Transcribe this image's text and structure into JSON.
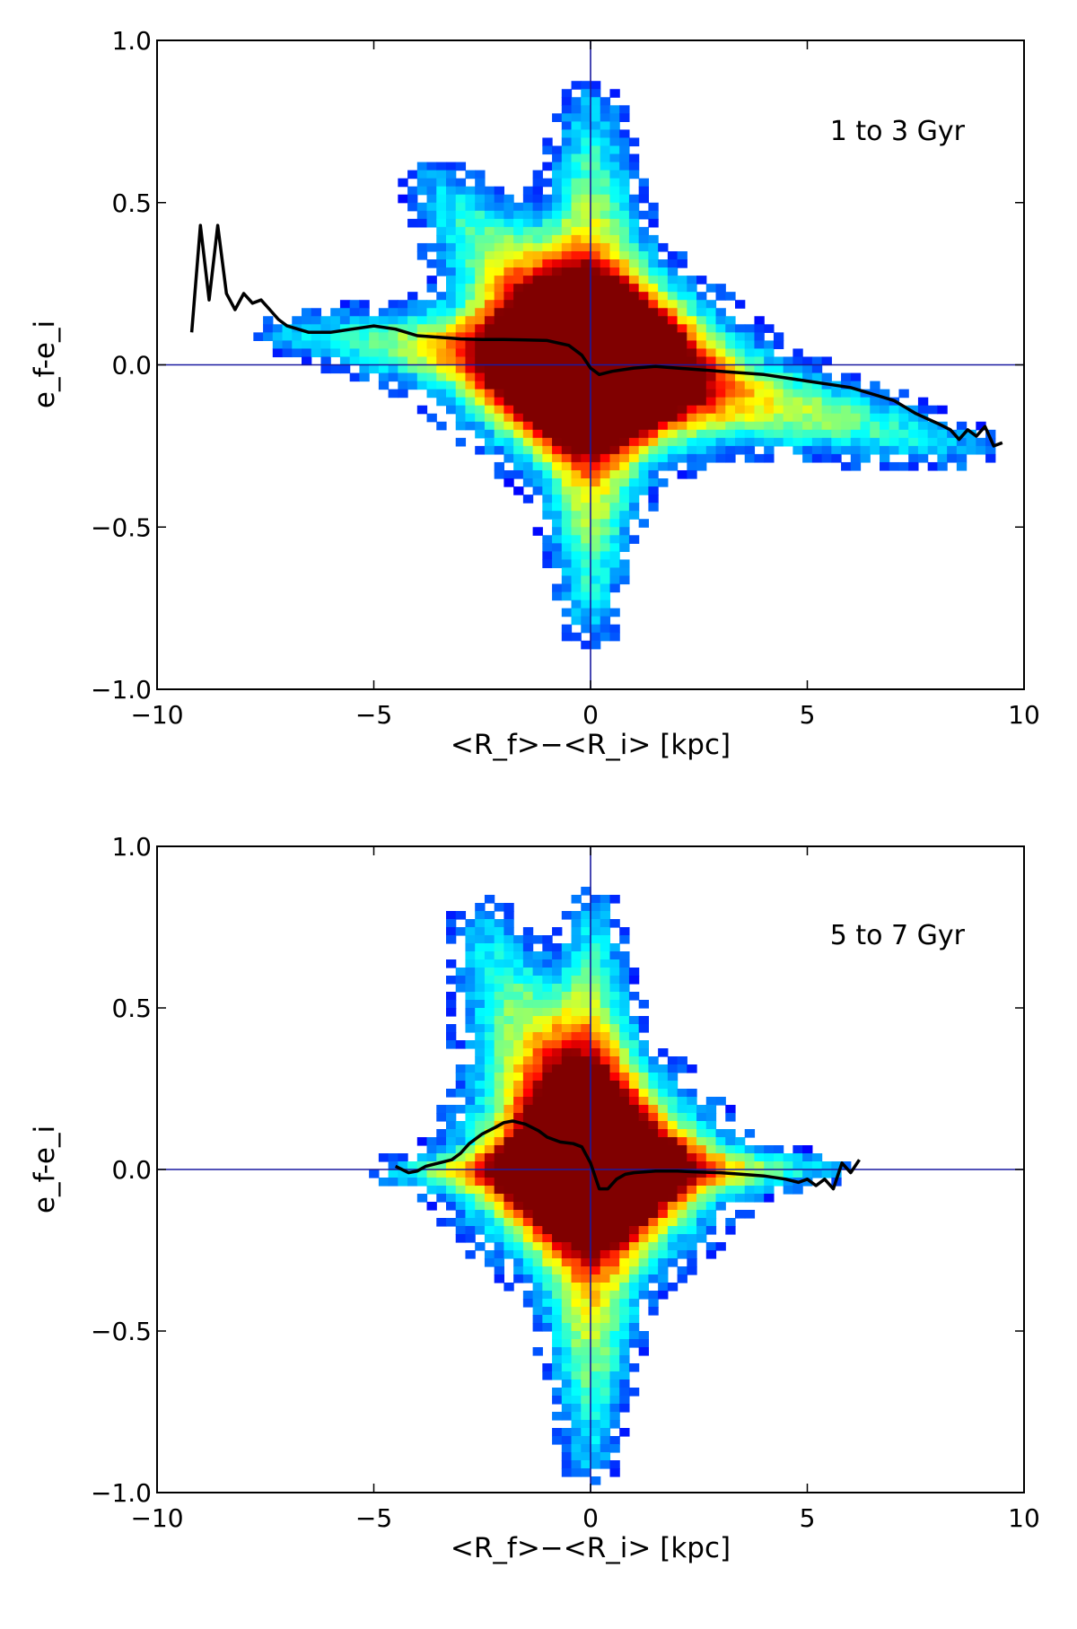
{
  "chart_data": [
    {
      "type": "heatmap",
      "annotation": "1 to 3 Gyr",
      "xlabel": "<R_f>−<R_i> [kpc]",
      "ylabel": "e_f-e_i",
      "xlim": [
        -10,
        10
      ],
      "ylim": [
        -1.0,
        1.0
      ],
      "xticks": [
        -10,
        -5,
        0,
        5,
        10
      ],
      "xtick_labels": [
        "−10",
        "−5",
        "0",
        "5",
        "10"
      ],
      "yticks": [
        -1.0,
        -0.5,
        0.0,
        0.5,
        1.0
      ],
      "ytick_labels": [
        "−1.0",
        "−0.5",
        "0.0",
        "0.5",
        "1.0"
      ],
      "reference_lines": {
        "x": 0,
        "y": 0
      },
      "density_shape": {
        "core": {
          "x": 0,
          "y": 0
        },
        "arms": [
          {
            "from": [
              0,
              0
            ],
            "to": [
              -3.5,
              0.55
            ],
            "width": 0.22
          },
          {
            "from": [
              0,
              0
            ],
            "to": [
              0,
              0.8
            ],
            "width": 0.18
          },
          {
            "from": [
              0,
              0
            ],
            "to": [
              0,
              -0.8
            ],
            "width": 0.16
          },
          {
            "from": [
              0,
              0
            ],
            "to": [
              8.5,
              -0.25
            ],
            "width": 0.2
          },
          {
            "from": [
              0,
              0
            ],
            "to": [
              -7,
              0.1
            ],
            "width": 0.18
          }
        ]
      },
      "series": [
        {
          "x": [
            -9.2,
            -9.0,
            -8.8,
            -8.6,
            -8.4,
            -8.2,
            -8.0,
            -7.8,
            -7.6,
            -7.4,
            -7.2,
            -7.0,
            -6.5,
            -6.0,
            -5.5,
            -5.0,
            -4.5,
            -4.0,
            -3.5,
            -3.0,
            -2.5,
            -2.0,
            -1.5,
            -1.0,
            -0.5,
            -0.2,
            0.0,
            0.2,
            0.5,
            1.0,
            1.5,
            2.0,
            2.5,
            3.0,
            3.5,
            4.0,
            4.5,
            5.0,
            5.5,
            6.0,
            6.5,
            7.0,
            7.5,
            8.0,
            8.3,
            8.5,
            8.7,
            8.9,
            9.1,
            9.3,
            9.5
          ],
          "y": [
            0.1,
            0.43,
            0.2,
            0.43,
            0.22,
            0.17,
            0.22,
            0.19,
            0.2,
            0.17,
            0.14,
            0.12,
            0.1,
            0.1,
            0.11,
            0.12,
            0.11,
            0.09,
            0.085,
            0.08,
            0.078,
            0.078,
            0.077,
            0.075,
            0.06,
            0.03,
            -0.01,
            -0.03,
            -0.02,
            -0.01,
            -0.005,
            -0.01,
            -0.015,
            -0.02,
            -0.025,
            -0.03,
            -0.04,
            -0.05,
            -0.06,
            -0.07,
            -0.09,
            -0.11,
            -0.15,
            -0.18,
            -0.2,
            -0.23,
            -0.2,
            -0.22,
            -0.19,
            -0.25,
            -0.24
          ]
        }
      ]
    },
    {
      "type": "heatmap",
      "annotation": "5 to 7 Gyr",
      "xlabel": "<R_f>−<R_i> [kpc]",
      "ylabel": "e_f-e_i",
      "xlim": [
        -10,
        10
      ],
      "ylim": [
        -1.0,
        1.0
      ],
      "xticks": [
        -10,
        -5,
        0,
        5,
        10
      ],
      "xtick_labels": [
        "−10",
        "−5",
        "0",
        "5",
        "10"
      ],
      "yticks": [
        -1.0,
        -0.5,
        0.0,
        0.5,
        1.0
      ],
      "ytick_labels": [
        "−1.0",
        "−0.5",
        "0.0",
        "0.5",
        "1.0"
      ],
      "reference_lines": {
        "x": 0,
        "y": 0
      },
      "density_shape": {
        "core": {
          "x": 0,
          "y": 0
        },
        "arms": [
          {
            "from": [
              0,
              0
            ],
            "to": [
              -2.5,
              0.75
            ],
            "width": 0.22
          },
          {
            "from": [
              0,
              0
            ],
            "to": [
              0,
              0.8
            ],
            "width": 0.16
          },
          {
            "from": [
              0,
              0
            ],
            "to": [
              0,
              -0.9
            ],
            "width": 0.16
          },
          {
            "from": [
              0,
              0
            ],
            "to": [
              5.5,
              0.0
            ],
            "width": 0.12
          },
          {
            "from": [
              0,
              0
            ],
            "to": [
              -4.5,
              -0.01
            ],
            "width": 0.12
          }
        ]
      },
      "series": [
        {
          "x": [
            -4.5,
            -4.2,
            -4.0,
            -3.8,
            -3.5,
            -3.2,
            -3.0,
            -2.8,
            -2.5,
            -2.2,
            -2.0,
            -1.8,
            -1.5,
            -1.2,
            -1.0,
            -0.7,
            -0.4,
            -0.2,
            0.0,
            0.2,
            0.4,
            0.6,
            0.8,
            1.0,
            1.5,
            2.0,
            2.5,
            3.0,
            3.5,
            4.0,
            4.5,
            4.8,
            5.0,
            5.2,
            5.4,
            5.6,
            5.8,
            6.0,
            6.2
          ],
          "y": [
            0.01,
            -0.01,
            -0.005,
            0.01,
            0.02,
            0.03,
            0.05,
            0.08,
            0.11,
            0.13,
            0.145,
            0.15,
            0.14,
            0.12,
            0.1,
            0.085,
            0.08,
            0.07,
            0.02,
            -0.06,
            -0.06,
            -0.03,
            -0.015,
            -0.01,
            -0.005,
            -0.005,
            -0.008,
            -0.01,
            -0.015,
            -0.02,
            -0.03,
            -0.04,
            -0.03,
            -0.05,
            -0.03,
            -0.06,
            0.02,
            -0.01,
            0.03
          ]
        }
      ]
    }
  ]
}
